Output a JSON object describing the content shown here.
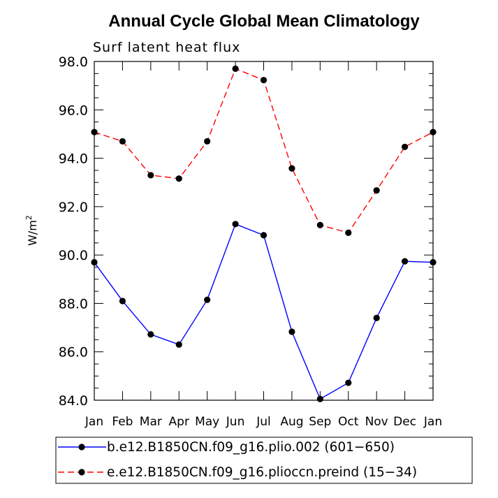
{
  "chart_data": {
    "type": "line",
    "title": "Annual Cycle Global Mean Climatology",
    "subtitle": "Surf latent heat flux",
    "ylabel_base": "W/m",
    "ylabel_exp": "2",
    "xlabel": "",
    "ylim": [
      84.0,
      98.0
    ],
    "yticks": [
      "84.0",
      "86.0",
      "88.0",
      "90.0",
      "92.0",
      "94.0",
      "96.0",
      "98.0"
    ],
    "ytick_values": [
      84,
      86,
      88,
      90,
      92,
      94,
      96,
      98
    ],
    "categories": [
      "Jan",
      "Feb",
      "Mar",
      "Apr",
      "May",
      "Jun",
      "Jul",
      "Aug",
      "Sep",
      "Oct",
      "Nov",
      "Dec",
      "Jan"
    ],
    "series": [
      {
        "name": "b.e12.B1850CN.f09_g16.plio.002 (601−650)",
        "color": "#0000ff",
        "dash": "solid",
        "values": [
          89.7,
          88.1,
          86.72,
          86.3,
          88.15,
          91.28,
          90.82,
          86.83,
          84.05,
          84.72,
          87.4,
          89.74,
          89.7
        ]
      },
      {
        "name": "e.e12.B1850CN.f09_g16.plioccn.preind (15−34)",
        "color": "#ff0000",
        "dash": "dashed",
        "values": [
          95.08,
          94.7,
          93.3,
          93.16,
          94.7,
          97.7,
          97.23,
          93.58,
          91.24,
          90.92,
          92.67,
          94.47,
          95.08
        ]
      }
    ],
    "legend_position": "bottom",
    "grid": false
  }
}
